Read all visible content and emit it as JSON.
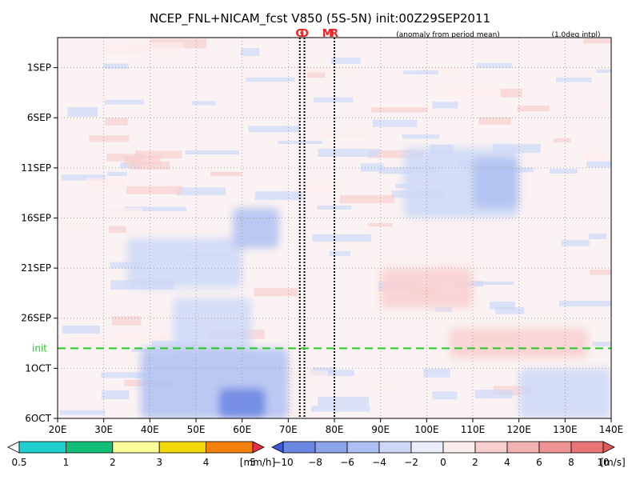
{
  "chart_data": {
    "type": "heatmap",
    "title": "NCEP_FNL+NICAM_fcst V850 (5S-5N) init:00Z29SEP2011",
    "subtitle_left": "(anomaly from period mean)",
    "subtitle_right": "(1.0deg intpl)",
    "x_axis": {
      "range": [
        20,
        140
      ],
      "ticks": [
        20,
        30,
        40,
        50,
        60,
        70,
        80,
        90,
        100,
        110,
        120,
        130,
        140
      ],
      "tick_labels": [
        "20E",
        "30E",
        "40E",
        "50E",
        "60E",
        "70E",
        "80E",
        "90E",
        "100E",
        "110E",
        "120E",
        "130E",
        "140E"
      ]
    },
    "y_axis": {
      "range": [
        "29AUG2011",
        "06OCT2011"
      ],
      "ticks": [
        "01SEP2011",
        "06SEP2011",
        "11SEP2011",
        "16SEP2011",
        "21SEP2011",
        "26SEP2011",
        "01OCT2011",
        "06OCT2011"
      ],
      "tick_labels": [
        "1SEP",
        "6SEP",
        "11SEP",
        "16SEP",
        "21SEP",
        "26SEP",
        "1OCT",
        "6OCT"
      ],
      "direction": "time increases downward"
    },
    "grid": true,
    "init_line": {
      "label": "init",
      "date": "29SEP2011",
      "color": "#22cc22"
    },
    "markers": [
      {
        "label": "G",
        "lon": 72.5,
        "color": "#ee2222"
      },
      {
        "label": "D",
        "lon": 73.5,
        "color": "#ee2222"
      },
      {
        "label": "M",
        "lon": 78.5,
        "color": "#ee2222"
      },
      {
        "label": "R",
        "lon": 80.0,
        "color": "#ee2222"
      }
    ],
    "vertical_lines_lon": [
      72.5,
      73.5,
      80.0
    ],
    "precip_colorbar": {
      "levels": [
        "0.5",
        "1",
        "2",
        "3",
        "4",
        "5"
      ],
      "unit": "[mm/h]",
      "colors": [
        "#ffffff",
        "#1fcfcf",
        "#12be78",
        "#ffff9a",
        "#f2d70a",
        "#f2800a",
        "#e8303f"
      ]
    },
    "wind_colorbar": {
      "levels": [
        "−10",
        "−8",
        "−6",
        "−4",
        "−2",
        "0",
        "2",
        "4",
        "6",
        "8",
        "10"
      ],
      "unit": "[m/s]",
      "colors": [
        "#3a5ad8",
        "#6b86e3",
        "#8ea4ea",
        "#aebff1",
        "#cdd8f7",
        "#eaeefc",
        "#fdecec",
        "#f8cfcf",
        "#f3b2b2",
        "#ee9494",
        "#e87676",
        "#e05a5a"
      ]
    },
    "anomaly_features": [
      {
        "lon0": 38,
        "lon1": 70,
        "t0": "29SEP2011",
        "t1": "06OCT2011",
        "value": -6
      },
      {
        "lon0": 55,
        "lon1": 65,
        "t0": "03OCT2011",
        "t1": "06OCT2011",
        "value": -10
      },
      {
        "lon0": 45,
        "lon1": 62,
        "t0": "24SEP2011",
        "t1": "29SEP2011",
        "value": -4
      },
      {
        "lon0": 35,
        "lon1": 60,
        "t0": "18SEP2011",
        "t1": "23SEP2011",
        "value": -3
      },
      {
        "lon0": 58,
        "lon1": 68,
        "t0": "15SEP2011",
        "t1": "19SEP2011",
        "value": -5
      },
      {
        "lon0": 95,
        "lon1": 120,
        "t0": "09SEP2011",
        "t1": "16SEP2011",
        "value": -3
      },
      {
        "lon0": 110,
        "lon1": 120,
        "t0": "10SEP2011",
        "t1": "15SEP2011",
        "value": -5
      },
      {
        "lon0": 105,
        "lon1": 135,
        "t0": "27SEP2011",
        "t1": "30SEP2011",
        "value": 3
      },
      {
        "lon0": 120,
        "lon1": 140,
        "t0": "01OCT2011",
        "t1": "06OCT2011",
        "value": -4
      },
      {
        "lon0": 90,
        "lon1": 110,
        "t0": "21SEP2011",
        "t1": "25SEP2011",
        "value": 2
      }
    ]
  }
}
